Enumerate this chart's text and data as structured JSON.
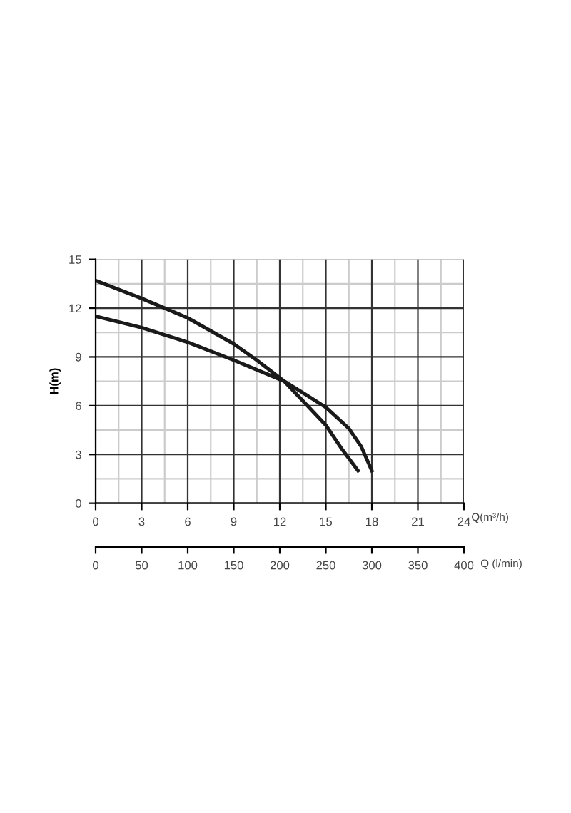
{
  "chart_data": {
    "type": "line",
    "xlabel": "Q(m³/h)",
    "ylabel": "H(m)",
    "x2label": "Q (l/min)",
    "series": [
      {
        "color": "#1a1a1a",
        "x": [
          0,
          3,
          6,
          9,
          10.5,
          12.3,
          13.5,
          15,
          16,
          17.1
        ],
        "values": [
          13.7,
          12.6,
          11.4,
          9.8,
          8.8,
          7.5,
          6.3,
          4.8,
          3.4,
          2.0
        ]
      },
      {
        "color": "#1a1a1a",
        "x": [
          0,
          3,
          6,
          9,
          12.3,
          13.5,
          15,
          16.5,
          17.3,
          18
        ],
        "values": [
          11.5,
          10.8,
          9.9,
          8.8,
          7.5,
          6.8,
          5.9,
          4.6,
          3.5,
          2.0
        ]
      }
    ],
    "xlim": [
      0,
      24
    ],
    "xticks": [
      0,
      3,
      6,
      9,
      12,
      15,
      18,
      21,
      24
    ],
    "ylim": [
      0,
      15
    ],
    "yticks": [
      0,
      3,
      6,
      9,
      12,
      15
    ],
    "x2lim": [
      0,
      400
    ],
    "x2ticks": [
      0,
      50,
      100,
      150,
      200,
      250,
      300,
      350,
      400
    ],
    "grid": true,
    "marker": "none",
    "line_style": "solid"
  }
}
